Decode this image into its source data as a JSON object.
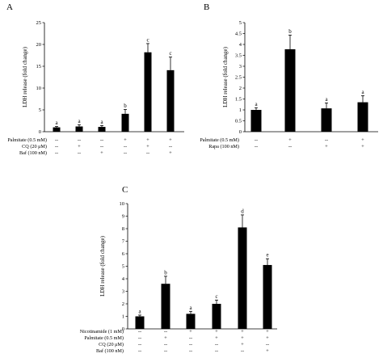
{
  "chart_data": [
    {
      "type": "bar",
      "panel": "A",
      "ylabel": "LDH release (fold change)",
      "ylim": [
        0,
        25
      ],
      "yticks": [
        0,
        5,
        10,
        15,
        20,
        25
      ],
      "grid": false,
      "bar_color": "#000000",
      "values": [
        1.0,
        1.2,
        1.1,
        4.1,
        18.2,
        14.1
      ],
      "errors": [
        0.2,
        0.4,
        0.3,
        1.0,
        2.0,
        3.0
      ],
      "letters": [
        "a",
        "a",
        "a",
        "b",
        "c",
        "c"
      ],
      "conditions": [
        {
          "label": "Palmitate (0.5 mM)",
          "signs": [
            "--",
            "--",
            "--",
            "+",
            "+",
            "+"
          ]
        },
        {
          "label": "CQ (20 μM)",
          "signs": [
            "--",
            "+",
            "--",
            "--",
            "+",
            "--"
          ]
        },
        {
          "label": "Baf (100 nM)",
          "signs": [
            "--",
            "--",
            "+",
            "--",
            "--",
            "+"
          ]
        }
      ]
    },
    {
      "type": "bar",
      "panel": "B",
      "ylabel": "LDH release (fold change)",
      "ylim": [
        0,
        5
      ],
      "yticks": [
        0,
        0.5,
        1,
        1.5,
        2,
        2.5,
        3,
        3.5,
        4,
        4.5,
        5
      ],
      "grid": false,
      "bar_color": "#000000",
      "values": [
        1.0,
        3.78,
        1.07,
        1.35
      ],
      "errors": [
        0.1,
        0.65,
        0.25,
        0.3
      ],
      "letters": [
        "a",
        "b",
        "a",
        "a"
      ],
      "conditions": [
        {
          "label": "Palmitate (0.5 mM)",
          "signs": [
            "--",
            "+",
            "--",
            "+"
          ]
        },
        {
          "label": "Rapa (100 nM)",
          "signs": [
            "--",
            "--",
            "+",
            "+"
          ]
        }
      ]
    },
    {
      "type": "bar",
      "panel": "C",
      "ylabel": "LDH release (fold change)",
      "ylim": [
        0,
        10
      ],
      "yticks": [
        0,
        1,
        2,
        3,
        4,
        5,
        6,
        7,
        8,
        9,
        10
      ],
      "grid": false,
      "bar_color": "#000000",
      "values": [
        1.0,
        3.6,
        1.2,
        2.0,
        8.1,
        5.1
      ],
      "errors": [
        0.1,
        0.6,
        0.2,
        0.3,
        1.0,
        0.5
      ],
      "letters": [
        "a",
        "b",
        "a",
        "c",
        "d",
        "e"
      ],
      "conditions": [
        {
          "label": "Nicotinamide (1 mM)",
          "signs": [
            "--",
            "--",
            "+",
            "+",
            "+",
            "+"
          ]
        },
        {
          "label": "Palmitate (0.5 mM)",
          "signs": [
            "--",
            "+",
            "--",
            "+",
            "+",
            "+"
          ]
        },
        {
          "label": "CQ (20 μM)",
          "signs": [
            "--",
            "--",
            "--",
            "--",
            "+",
            "--"
          ]
        },
        {
          "label": "Baf (100 nM)",
          "signs": [
            "--",
            "--",
            "--",
            "--",
            "--",
            "+"
          ]
        }
      ]
    }
  ]
}
